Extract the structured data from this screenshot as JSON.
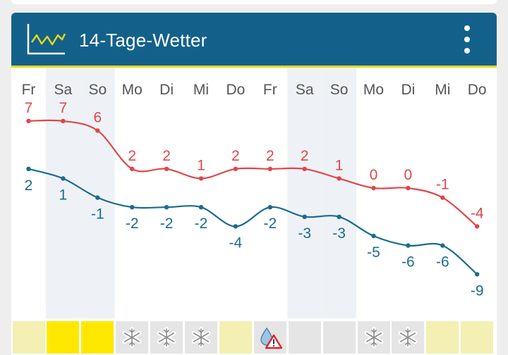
{
  "header": {
    "title": "14-Tage-Wetter",
    "icon": "temperature-chart-icon",
    "menu_icon": "more-vertical-icon"
  },
  "colors": {
    "header_bg": "#13618a",
    "accent": "#e7d51d",
    "max_line": "#e2454c",
    "min_line": "#1b6b8e",
    "weekend_bg": "#eef2f6"
  },
  "chart_data": {
    "type": "line",
    "categories": [
      "Fr",
      "Sa",
      "So",
      "Mo",
      "Di",
      "Mi",
      "Do",
      "Fr",
      "Sa",
      "So",
      "Mo",
      "Di",
      "Mi",
      "Do"
    ],
    "weekend_columns": [
      1,
      2,
      8,
      9
    ],
    "series": [
      {
        "values": [
          7,
          7,
          6,
          2,
          2,
          1,
          2,
          2,
          2,
          1,
          0,
          0,
          -1,
          -4
        ]
      },
      {
        "values": [
          2,
          1,
          -1,
          -2,
          -2,
          -2,
          -4,
          -2,
          -3,
          -3,
          -5,
          -6,
          -6,
          -9
        ]
      }
    ]
  },
  "weather_strip": [
    {
      "icon": "none",
      "color": "#f4efb2"
    },
    {
      "icon": "none",
      "color": "#ffe800"
    },
    {
      "icon": "none",
      "color": "#ffe800"
    },
    {
      "icon": "snowflake-icon",
      "color": "#e5e5e5"
    },
    {
      "icon": "snowflake-icon",
      "color": "#e5e5e5"
    },
    {
      "icon": "snowflake-icon",
      "color": "#e5e5e5"
    },
    {
      "icon": "none",
      "color": "#f4efb2"
    },
    {
      "icon": "rain-warning-icon",
      "color": "#e5e5e5"
    },
    {
      "icon": "none",
      "color": "#e5e5e5"
    },
    {
      "icon": "none",
      "color": "#e5e5e5"
    },
    {
      "icon": "snowflake-icon",
      "color": "#e5e5e5"
    },
    {
      "icon": "snowflake-icon",
      "color": "#e5e5e5"
    },
    {
      "icon": "none",
      "color": "#f4efb2"
    },
    {
      "icon": "none",
      "color": "#f4efb2"
    }
  ]
}
